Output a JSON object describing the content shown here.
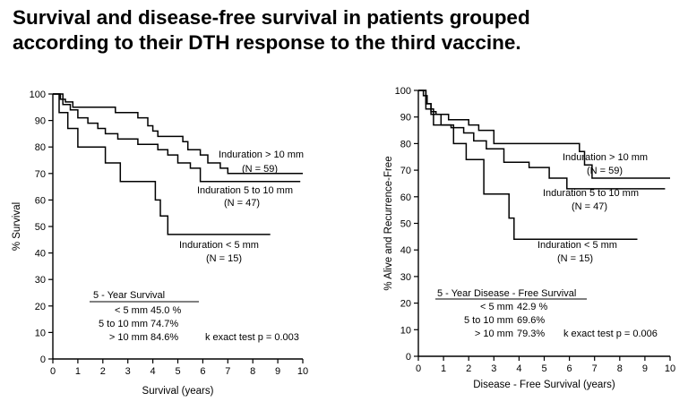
{
  "page": {
    "title_line1": "Survival and disease-free survival in patients grouped",
    "title_line2": "according to their DTH response to the third vaccine."
  },
  "chart_data": [
    {
      "type": "line",
      "xlabel": "Survival (years)",
      "ylabel": "% Survival",
      "xlim": [
        0,
        10
      ],
      "ylim": [
        0,
        100
      ],
      "xticks": [
        0,
        1,
        2,
        3,
        4,
        5,
        6,
        7,
        8,
        9,
        10
      ],
      "yticks": [
        0,
        10,
        20,
        30,
        40,
        50,
        60,
        70,
        80,
        90,
        100
      ],
      "grid": false,
      "series": [
        {
          "name": "Induration > 10 mm",
          "n_label": "(N = 59)",
          "x": [
            0,
            0.3,
            0.5,
            0.8,
            1.0,
            1.6,
            2.5,
            3.4,
            3.8,
            4.0,
            4.2,
            4.8,
            5.2,
            5.4,
            5.9,
            6.2,
            6.7,
            7.0,
            10.0
          ],
          "y": [
            100,
            98,
            97,
            95,
            95,
            95,
            93,
            91,
            88,
            86,
            84,
            84,
            82,
            79,
            77,
            74,
            72,
            70,
            70
          ]
        },
        {
          "name": "Induration 5 to 10 mm",
          "n_label": "(N = 47)",
          "x": [
            0,
            0.4,
            0.7,
            1.0,
            1.4,
            1.8,
            2.1,
            2.6,
            3.0,
            3.4,
            4.2,
            4.6,
            5.0,
            5.5,
            5.9,
            9.9
          ],
          "y": [
            100,
            96,
            94,
            91,
            89,
            87,
            85,
            83,
            83,
            81,
            79,
            77,
            74,
            72,
            67,
            67
          ]
        },
        {
          "name": "Induration < 5 mm",
          "n_label": "(N = 15)",
          "x": [
            0,
            0.25,
            0.6,
            1.0,
            1.9,
            2.1,
            2.5,
            2.7,
            3.8,
            4.1,
            4.3,
            4.6,
            8.7
          ],
          "y": [
            100,
            93,
            87,
            80,
            80,
            74,
            74,
            67,
            67,
            60,
            54,
            47,
            47
          ]
        }
      ],
      "annotation": {
        "header": "5 - Year Survival",
        "rows": [
          {
            "label": "< 5 mm",
            "value": "45.0 %"
          },
          {
            "label": "5 to 10 mm",
            "value": "74.7%"
          },
          {
            "label": "> 10 mm",
            "value": "84.6%"
          }
        ],
        "test": "k exact test p = 0.003"
      }
    },
    {
      "type": "line",
      "xlabel": "Disease - Free Survival (years)",
      "ylabel": "% Alive and Recurrence-Free",
      "xlim": [
        0,
        10
      ],
      "ylim": [
        0,
        100
      ],
      "xticks": [
        0,
        1,
        2,
        3,
        4,
        5,
        6,
        7,
        8,
        9,
        10
      ],
      "yticks": [
        0,
        10,
        20,
        30,
        40,
        50,
        60,
        70,
        80,
        90,
        100
      ],
      "grid": false,
      "series": [
        {
          "name": "Induration > 10 mm",
          "n_label": "(N = 59)",
          "x": [
            0,
            0.2,
            0.35,
            0.5,
            0.7,
            1.2,
            2.0,
            2.4,
            3.0,
            5.9,
            6.4,
            6.6,
            6.9,
            10.0
          ],
          "y": [
            100,
            98,
            95,
            92,
            91,
            89,
            87,
            85,
            80,
            80,
            77,
            72,
            67,
            67
          ]
        },
        {
          "name": "Induration 5 to 10 mm",
          "n_label": "(N = 47)",
          "x": [
            0,
            0.3,
            0.5,
            0.9,
            1.3,
            1.8,
            2.2,
            2.7,
            3.4,
            4.4,
            5.2,
            5.9,
            9.8
          ],
          "y": [
            100,
            95,
            91,
            87,
            86,
            84,
            81,
            78,
            73,
            71,
            67,
            63,
            63
          ]
        },
        {
          "name": "Induration < 5 mm",
          "n_label": "(N = 15)",
          "x": [
            0,
            0.3,
            0.6,
            0.9,
            1.4,
            1.9,
            2.5,
            2.6,
            3.3,
            3.6,
            3.8,
            8.7
          ],
          "y": [
            100,
            93,
            87,
            87,
            80,
            74,
            74,
            61,
            61,
            52,
            44,
            44
          ]
        }
      ],
      "annotation": {
        "header": "5 - Year Disease - Free Survival",
        "rows": [
          {
            "label": "< 5 mm",
            "value": "42.9 %"
          },
          {
            "label": "5 to 10 mm",
            "value": "69.6%"
          },
          {
            "label": "> 10 mm",
            "value": "79.3%"
          }
        ],
        "test": "k exact test p = 0.006"
      }
    }
  ]
}
